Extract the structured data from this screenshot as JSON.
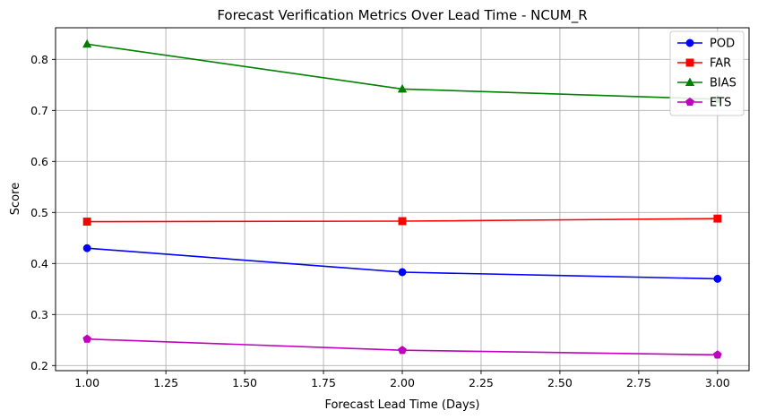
{
  "chart_data": {
    "type": "line",
    "title": "Forecast Verification Metrics Over Lead Time - NCUM_R",
    "xlabel": "Forecast Lead Time (Days)",
    "ylabel": "Score",
    "x": [
      1,
      2,
      3
    ],
    "xlim": [
      0.9,
      3.1
    ],
    "ylim": [
      0.19,
      0.862
    ],
    "xticks": [
      "1.00",
      "1.25",
      "1.50",
      "1.75",
      "2.00",
      "2.25",
      "2.50",
      "2.75",
      "3.00"
    ],
    "yticks": [
      "0.2",
      "0.3",
      "0.4",
      "0.5",
      "0.6",
      "0.7",
      "0.8"
    ],
    "grid": true,
    "legend_position": "top-right",
    "series": [
      {
        "name": "POD",
        "color": "#0000ff",
        "marker": "circle",
        "values": [
          0.43,
          0.383,
          0.37
        ]
      },
      {
        "name": "FAR",
        "color": "#ff0000",
        "marker": "square",
        "values": [
          0.482,
          0.483,
          0.488
        ]
      },
      {
        "name": "BIAS",
        "color": "#008000",
        "marker": "triangle",
        "values": [
          0.83,
          0.742,
          0.722
        ]
      },
      {
        "name": "ETS",
        "color": "#bf00bf",
        "marker": "pentagon",
        "values": [
          0.252,
          0.23,
          0.221
        ]
      }
    ]
  }
}
